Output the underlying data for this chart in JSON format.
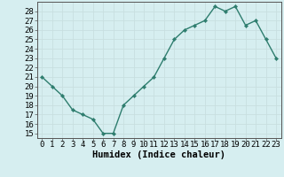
{
  "x": [
    0,
    1,
    2,
    3,
    4,
    5,
    6,
    7,
    8,
    9,
    10,
    11,
    12,
    13,
    14,
    15,
    16,
    17,
    18,
    19,
    20,
    21,
    22,
    23
  ],
  "y": [
    21,
    20,
    19,
    17.5,
    17,
    16.5,
    15,
    15,
    18,
    19,
    20,
    21,
    23,
    25,
    26,
    26.5,
    27,
    28.5,
    28,
    28.5,
    26.5,
    27,
    25,
    23
  ],
  "line_color": "#2e7d6e",
  "marker": "D",
  "marker_size": 2.2,
  "bg_color": "#d6eef0",
  "grid_color": "#c8dfe0",
  "xlabel": "Humidex (Indice chaleur)",
  "xlim": [
    -0.5,
    23.5
  ],
  "ylim": [
    14.5,
    29
  ],
  "yticks": [
    15,
    16,
    17,
    18,
    19,
    20,
    21,
    22,
    23,
    24,
    25,
    26,
    27,
    28
  ],
  "xticks": [
    0,
    1,
    2,
    3,
    4,
    5,
    6,
    7,
    8,
    9,
    10,
    11,
    12,
    13,
    14,
    15,
    16,
    17,
    18,
    19,
    20,
    21,
    22,
    23
  ],
  "xtick_labels": [
    "0",
    "1",
    "2",
    "3",
    "4",
    "5",
    "6",
    "7",
    "8",
    "9",
    "10",
    "11",
    "12",
    "13",
    "14",
    "15",
    "16",
    "17",
    "18",
    "19",
    "20",
    "21",
    "22",
    "23"
  ],
  "ytick_labels": [
    "15",
    "16",
    "17",
    "18",
    "19",
    "20",
    "21",
    "22",
    "23",
    "24",
    "25",
    "26",
    "27",
    "28"
  ],
  "font_size": 6.5,
  "xlabel_fontsize": 7.5,
  "line_width": 1.0
}
